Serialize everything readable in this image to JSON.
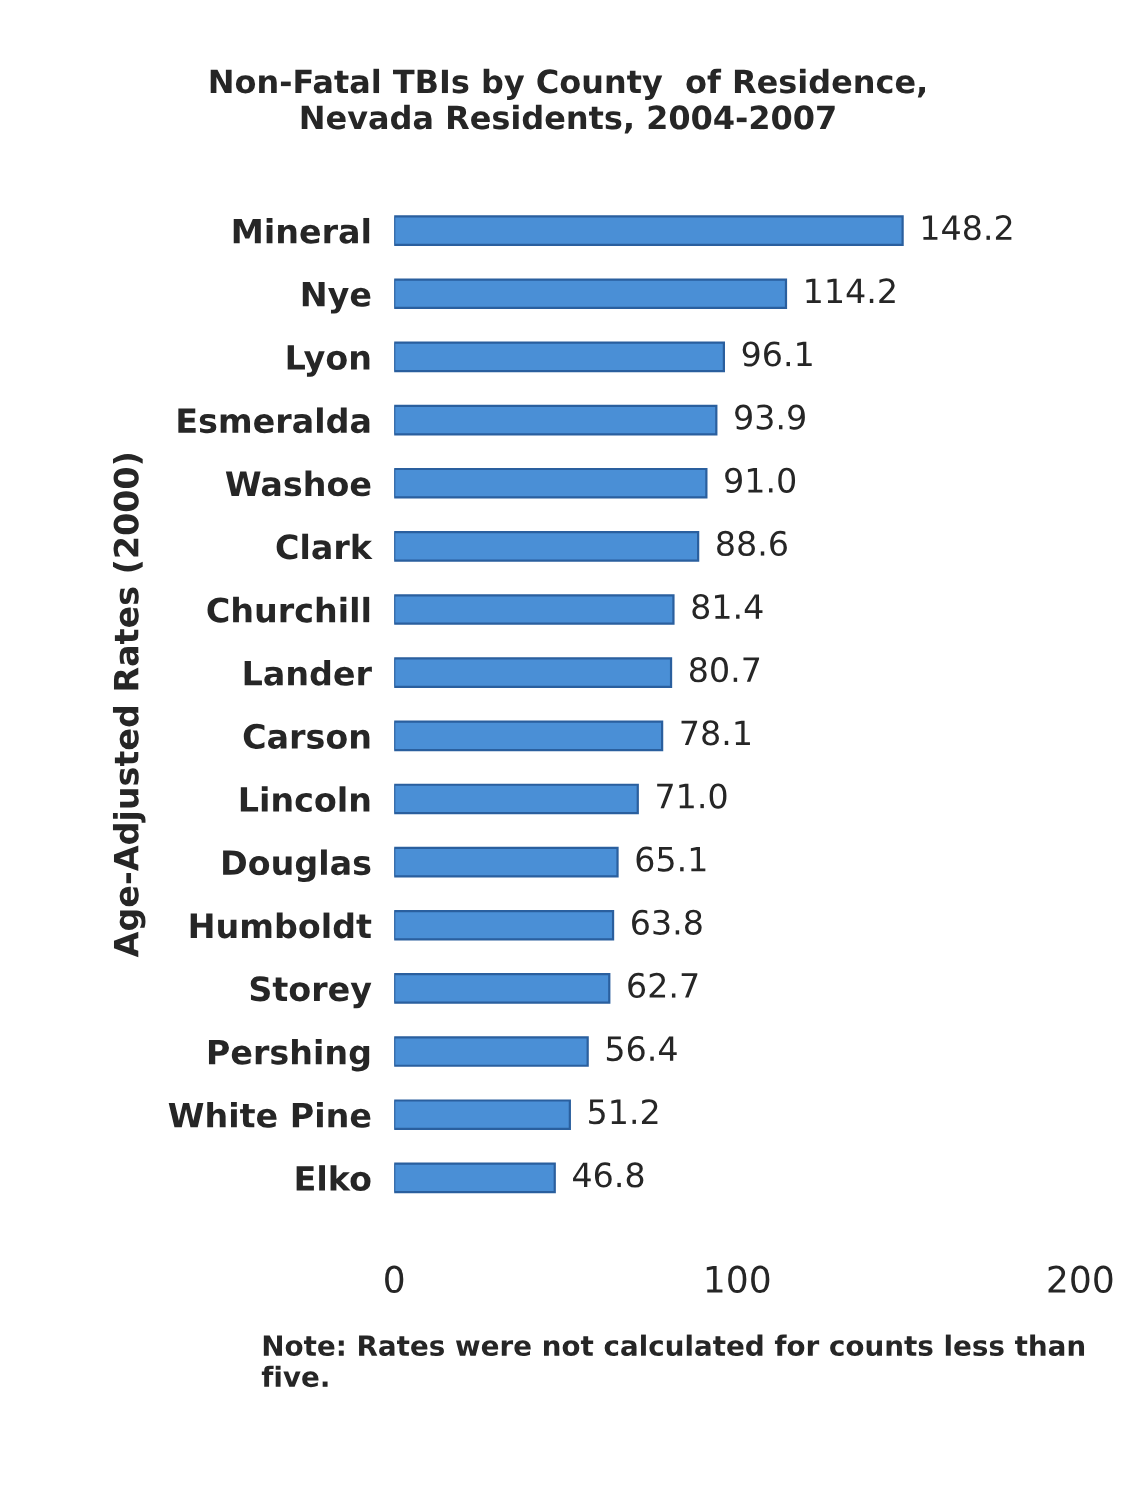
{
  "chart_data": {
    "type": "bar",
    "orientation": "horizontal",
    "title": "Non-Fatal TBIs by County  of Residence,\nNevada Residents, 2004-2007",
    "ylabel": "Age-Adjusted Rates (2000)",
    "categories": [
      "Mineral",
      "Nye",
      "Lyon",
      "Esmeralda",
      "Washoe",
      "Clark",
      "Churchill",
      "Lander",
      "Carson",
      "Lincoln",
      "Douglas",
      "Humboldt",
      "Storey",
      "Pershing",
      "White Pine",
      "Elko"
    ],
    "values": [
      148.2,
      114.2,
      96.1,
      93.9,
      91.0,
      88.6,
      81.4,
      80.7,
      78.1,
      71.0,
      65.1,
      63.8,
      62.7,
      56.4,
      51.2,
      46.8
    ],
    "color": "#4a8fd6",
    "xlim": [
      0,
      200
    ],
    "xticks": [
      0,
      100,
      200
    ],
    "grid": false,
    "value_labels": [
      "148.2",
      "114.2",
      "96.1",
      "93.9",
      "91.0",
      "88.6",
      "81.4",
      "80.7",
      "78.1",
      "71.0",
      "65.1",
      "63.8",
      "62.7",
      "56.4",
      "51.2",
      "46.8"
    ],
    "annotations": [
      "Note: Rates were not calculated for counts less than five."
    ]
  }
}
